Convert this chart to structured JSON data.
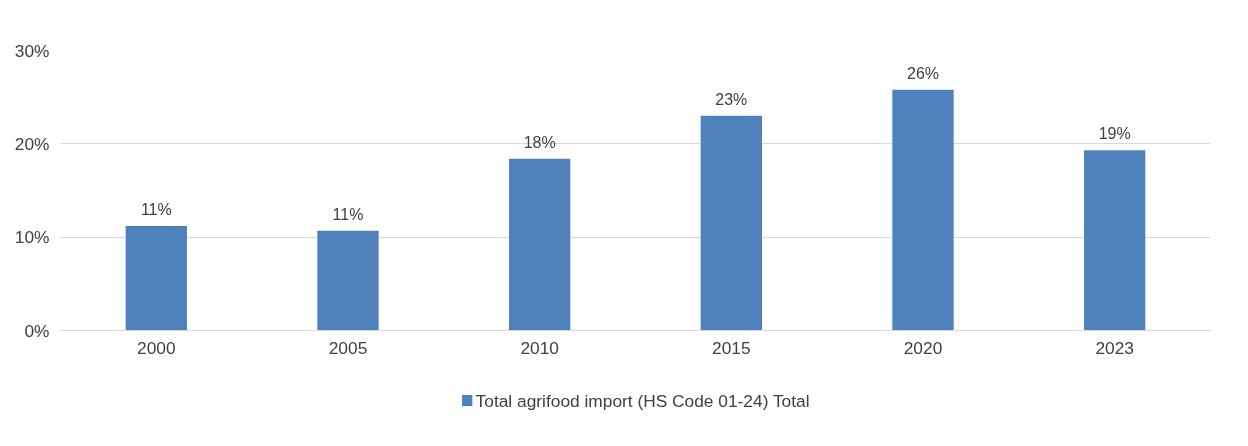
{
  "chart_data": {
    "type": "bar",
    "categories": [
      "2000",
      "2005",
      "2010",
      "2015",
      "2020",
      "2023"
    ],
    "series": [
      {
        "name": "Total agrifood import (HS Code 01-24) Total",
        "color": "#4f81bd",
        "values": [
          11.2,
          10.7,
          18.4,
          23.0,
          25.8,
          19.3
        ],
        "value_labels": [
          "11%",
          "11%",
          "18%",
          "23%",
          "26%",
          "19%"
        ]
      }
    ],
    "ylim": [
      0,
      30
    ],
    "yticks": [
      {
        "value": 0,
        "label": "0%"
      },
      {
        "value": 10,
        "label": "10%"
      },
      {
        "value": 20,
        "label": "20%"
      },
      {
        "value": 30,
        "label": "30%"
      }
    ],
    "grid": "y",
    "legend": "bottom"
  }
}
